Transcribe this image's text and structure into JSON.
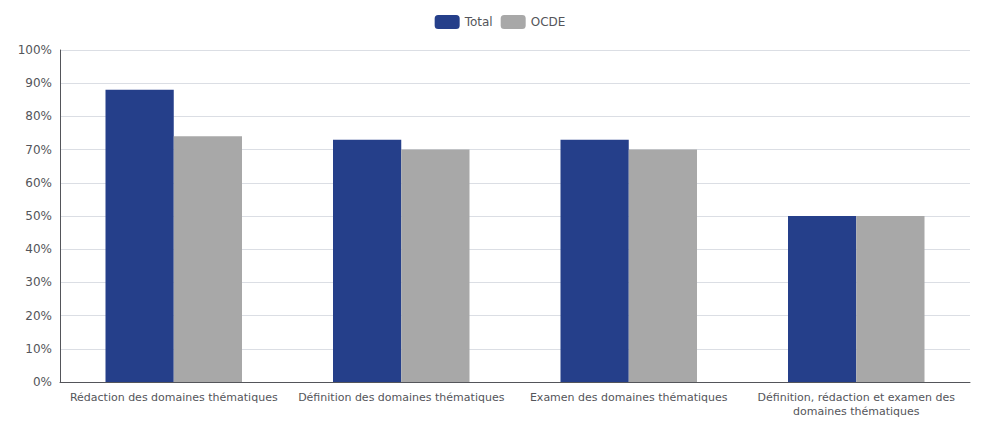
{
  "chart_data": {
    "type": "bar",
    "categories": [
      "Rédaction des domaines thématiques",
      "Définition des domaines thématiques",
      "Examen des domaines thématiques",
      "Définition, rédaction et examen des\ndomaines thématiques"
    ],
    "series": [
      {
        "name": "Total",
        "color": "#253F8A",
        "values": [
          88,
          73,
          73,
          50
        ]
      },
      {
        "name": "OCDE",
        "color": "#A8A8A8",
        "values": [
          74,
          70,
          70,
          50
        ]
      }
    ],
    "ylim": [
      0,
      100
    ],
    "yticks": [
      {
        "value": 0,
        "label": "0%"
      },
      {
        "value": 10,
        "label": "10%"
      },
      {
        "value": 20,
        "label": "20%"
      },
      {
        "value": 30,
        "label": "30%"
      },
      {
        "value": 40,
        "label": "40%"
      },
      {
        "value": 50,
        "label": "50%"
      },
      {
        "value": 60,
        "label": "60%"
      },
      {
        "value": 70,
        "label": "70%"
      },
      {
        "value": 80,
        "label": "80%"
      },
      {
        "value": 90,
        "label": "90%"
      },
      {
        "value": 100,
        "label": "100%"
      }
    ],
    "grid": true,
    "legend": "top"
  }
}
